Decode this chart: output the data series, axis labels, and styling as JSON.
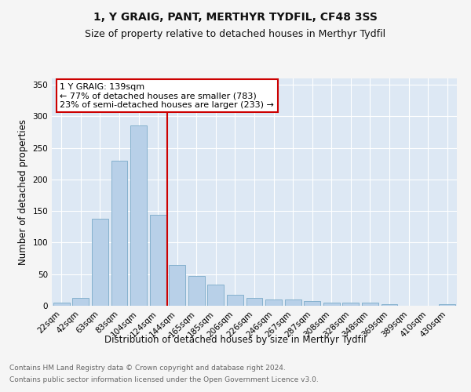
{
  "title": "1, Y GRAIG, PANT, MERTHYR TYDFIL, CF48 3SS",
  "subtitle": "Size of property relative to detached houses in Merthyr Tydfil",
  "xlabel": "Distribution of detached houses by size in Merthyr Tydfil",
  "ylabel": "Number of detached properties",
  "footnote1": "Contains HM Land Registry data © Crown copyright and database right 2024.",
  "footnote2": "Contains public sector information licensed under the Open Government Licence v3.0.",
  "categories": [
    "22sqm",
    "42sqm",
    "63sqm",
    "83sqm",
    "104sqm",
    "124sqm",
    "144sqm",
    "165sqm",
    "185sqm",
    "206sqm",
    "226sqm",
    "246sqm",
    "267sqm",
    "287sqm",
    "308sqm",
    "328sqm",
    "348sqm",
    "369sqm",
    "389sqm",
    "410sqm",
    "430sqm"
  ],
  "values": [
    5,
    13,
    138,
    230,
    285,
    144,
    65,
    47,
    33,
    17,
    13,
    10,
    10,
    7,
    5,
    5,
    5,
    3,
    0,
    0,
    2
  ],
  "bar_color": "#b8d0e8",
  "bar_edge_color": "#7aaac8",
  "vline_color": "#cc0000",
  "annotation_text": "1 Y GRAIG: 139sqm\n← 77% of detached houses are smaller (783)\n23% of semi-detached houses are larger (233) →",
  "annotation_box_color": "#cc0000",
  "annotation_text_color": "#000000",
  "annotation_bg_color": "#ffffff",
  "ylim": [
    0,
    360
  ],
  "yticks": [
    0,
    50,
    100,
    150,
    200,
    250,
    300,
    350
  ],
  "bg_color": "#dde8f4",
  "grid_color": "#ffffff",
  "fig_bg_color": "#f5f5f5",
  "title_fontsize": 10,
  "subtitle_fontsize": 9,
  "xlabel_fontsize": 8.5,
  "ylabel_fontsize": 8.5,
  "tick_fontsize": 7.5,
  "annot_fontsize": 8,
  "footnote_fontsize": 6.5
}
